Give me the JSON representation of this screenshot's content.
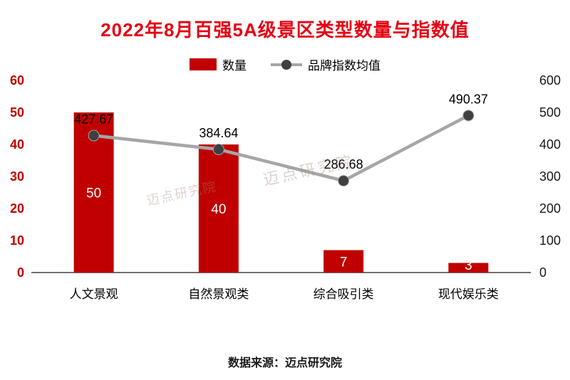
{
  "title": "2022年8月百强5A级景区类型数量与指数值",
  "footer": {
    "source": "数据来源：迈点研究院"
  },
  "watermark": {
    "text": "迈点研究院"
  },
  "colors": {
    "title_red": "#e60012",
    "bar_red": "#c00000",
    "left_tick_red": "#c00000",
    "right_tick_black": "#1a1a1a",
    "line_gray": "#a6a6a6",
    "marker_dark": "#3f3f3f",
    "axis_line": "#404040",
    "bar_label_white": "#ffffff",
    "point_label_black": "#000000"
  },
  "chart_data": {
    "type": "bar",
    "subtype": "bar+line combo, dual axis",
    "categories": [
      "人文景观",
      "自然景观类",
      "综合吸引类",
      "现代娱乐类"
    ],
    "series": [
      {
        "name": "数量",
        "type": "bar",
        "axis": "left",
        "values": [
          50,
          40,
          7,
          3
        ]
      },
      {
        "name": "品牌指数均值",
        "type": "line",
        "axis": "right",
        "values": [
          427.67,
          384.64,
          286.68,
          490.37
        ]
      }
    ],
    "left_axis": {
      "min": 0,
      "max": 60,
      "step": 10,
      "ticks": [
        "0",
        "10",
        "20",
        "30",
        "40",
        "50",
        "60"
      ]
    },
    "right_axis": {
      "min": 0,
      "max": 600,
      "step": 100,
      "ticks": [
        "0",
        "100",
        "200",
        "300",
        "400",
        "500",
        "600"
      ]
    },
    "title": "2022年8月百强5A级景区类型数量与指数值",
    "xlabel": "",
    "ylabel": "",
    "grid": false,
    "legend_position": "top"
  }
}
